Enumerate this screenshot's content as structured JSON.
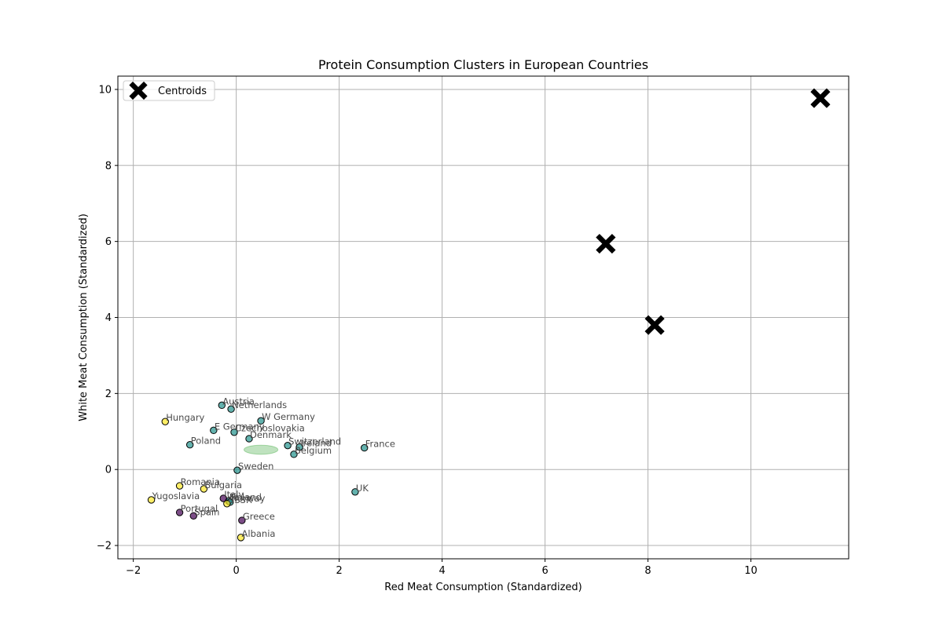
{
  "chart_data": {
    "type": "scatter",
    "title": "Protein Consumption Clusters in European Countries",
    "xlabel": "Red Meat Consumption (Standardized)",
    "ylabel": "White Meat Consumption (Standardized)",
    "xlim": [
      -2.3,
      11.9
    ],
    "ylim": [
      -2.35,
      10.35
    ],
    "xticks": [
      -2,
      0,
      2,
      4,
      6,
      8,
      10
    ],
    "yticks": [
      -2,
      0,
      2,
      4,
      6,
      8,
      10
    ],
    "grid": true,
    "legend": {
      "position": "top-left",
      "entries": [
        {
          "label": "Centroids",
          "marker": "X",
          "color": "#000000"
        }
      ]
    },
    "cluster_colors": {
      "0": "#440154",
      "1": "#21918c",
      "2": "#fde725"
    },
    "points": [
      {
        "label": "Albania",
        "x": 0.09,
        "y": -1.79,
        "cluster": 2
      },
      {
        "label": "Austria",
        "x": -0.28,
        "y": 1.69,
        "cluster": 1
      },
      {
        "label": "Belgium",
        "x": 1.12,
        "y": 0.4,
        "cluster": 1
      },
      {
        "label": "Bulgaria",
        "x": -0.63,
        "y": -0.51,
        "cluster": 2
      },
      {
        "label": "Czechoslovakia",
        "x": -0.04,
        "y": 0.98,
        "cluster": 1
      },
      {
        "label": "Denmark",
        "x": 0.25,
        "y": 0.81,
        "cluster": 1
      },
      {
        "label": "E Germany",
        "x": -0.44,
        "y": 1.03,
        "cluster": 1
      },
      {
        "label": "Finland",
        "x": -0.15,
        "y": -0.83,
        "cluster": 1
      },
      {
        "label": "France",
        "x": 2.49,
        "y": 0.57,
        "cluster": 1
      },
      {
        "label": "Greece",
        "x": 0.11,
        "y": -1.34,
        "cluster": 0
      },
      {
        "label": "Hungary",
        "x": -1.38,
        "y": 1.26,
        "cluster": 2
      },
      {
        "label": "Ireland",
        "x": 1.23,
        "y": 0.59,
        "cluster": 1
      },
      {
        "label": "Italy",
        "x": -0.25,
        "y": -0.76,
        "cluster": 0
      },
      {
        "label": "Netherlands",
        "x": -0.1,
        "y": 1.59,
        "cluster": 1
      },
      {
        "label": "Norway",
        "x": -0.12,
        "y": -0.86,
        "cluster": 1
      },
      {
        "label": "Poland",
        "x": -0.9,
        "y": 0.65,
        "cluster": 1
      },
      {
        "label": "Portugal",
        "x": -1.1,
        "y": -1.13,
        "cluster": 0
      },
      {
        "label": "Romania",
        "x": -1.1,
        "y": -0.43,
        "cluster": 2
      },
      {
        "label": "Spain",
        "x": -0.83,
        "y": -1.22,
        "cluster": 0
      },
      {
        "label": "Sweden",
        "x": 0.02,
        "y": -0.02,
        "cluster": 1
      },
      {
        "label": "Switzerland",
        "x": 1.0,
        "y": 0.63,
        "cluster": 1
      },
      {
        "label": "UK",
        "x": 2.31,
        "y": -0.59,
        "cluster": 1
      },
      {
        "label": "USSR",
        "x": -0.18,
        "y": -0.9,
        "cluster": 2
      },
      {
        "label": "W Germany",
        "x": 0.48,
        "y": 1.28,
        "cluster": 1
      },
      {
        "label": "Yugoslavia",
        "x": -1.65,
        "y": -0.8,
        "cluster": 2
      }
    ],
    "centroids": [
      {
        "x": 7.18,
        "y": 5.94
      },
      {
        "x": 11.35,
        "y": 9.77
      },
      {
        "x": 8.13,
        "y": 3.8
      }
    ],
    "ellipse": {
      "cx": 0.48,
      "cy": 0.52,
      "rx": 0.33,
      "ry": 0.12,
      "color": "#2ca02c"
    }
  }
}
